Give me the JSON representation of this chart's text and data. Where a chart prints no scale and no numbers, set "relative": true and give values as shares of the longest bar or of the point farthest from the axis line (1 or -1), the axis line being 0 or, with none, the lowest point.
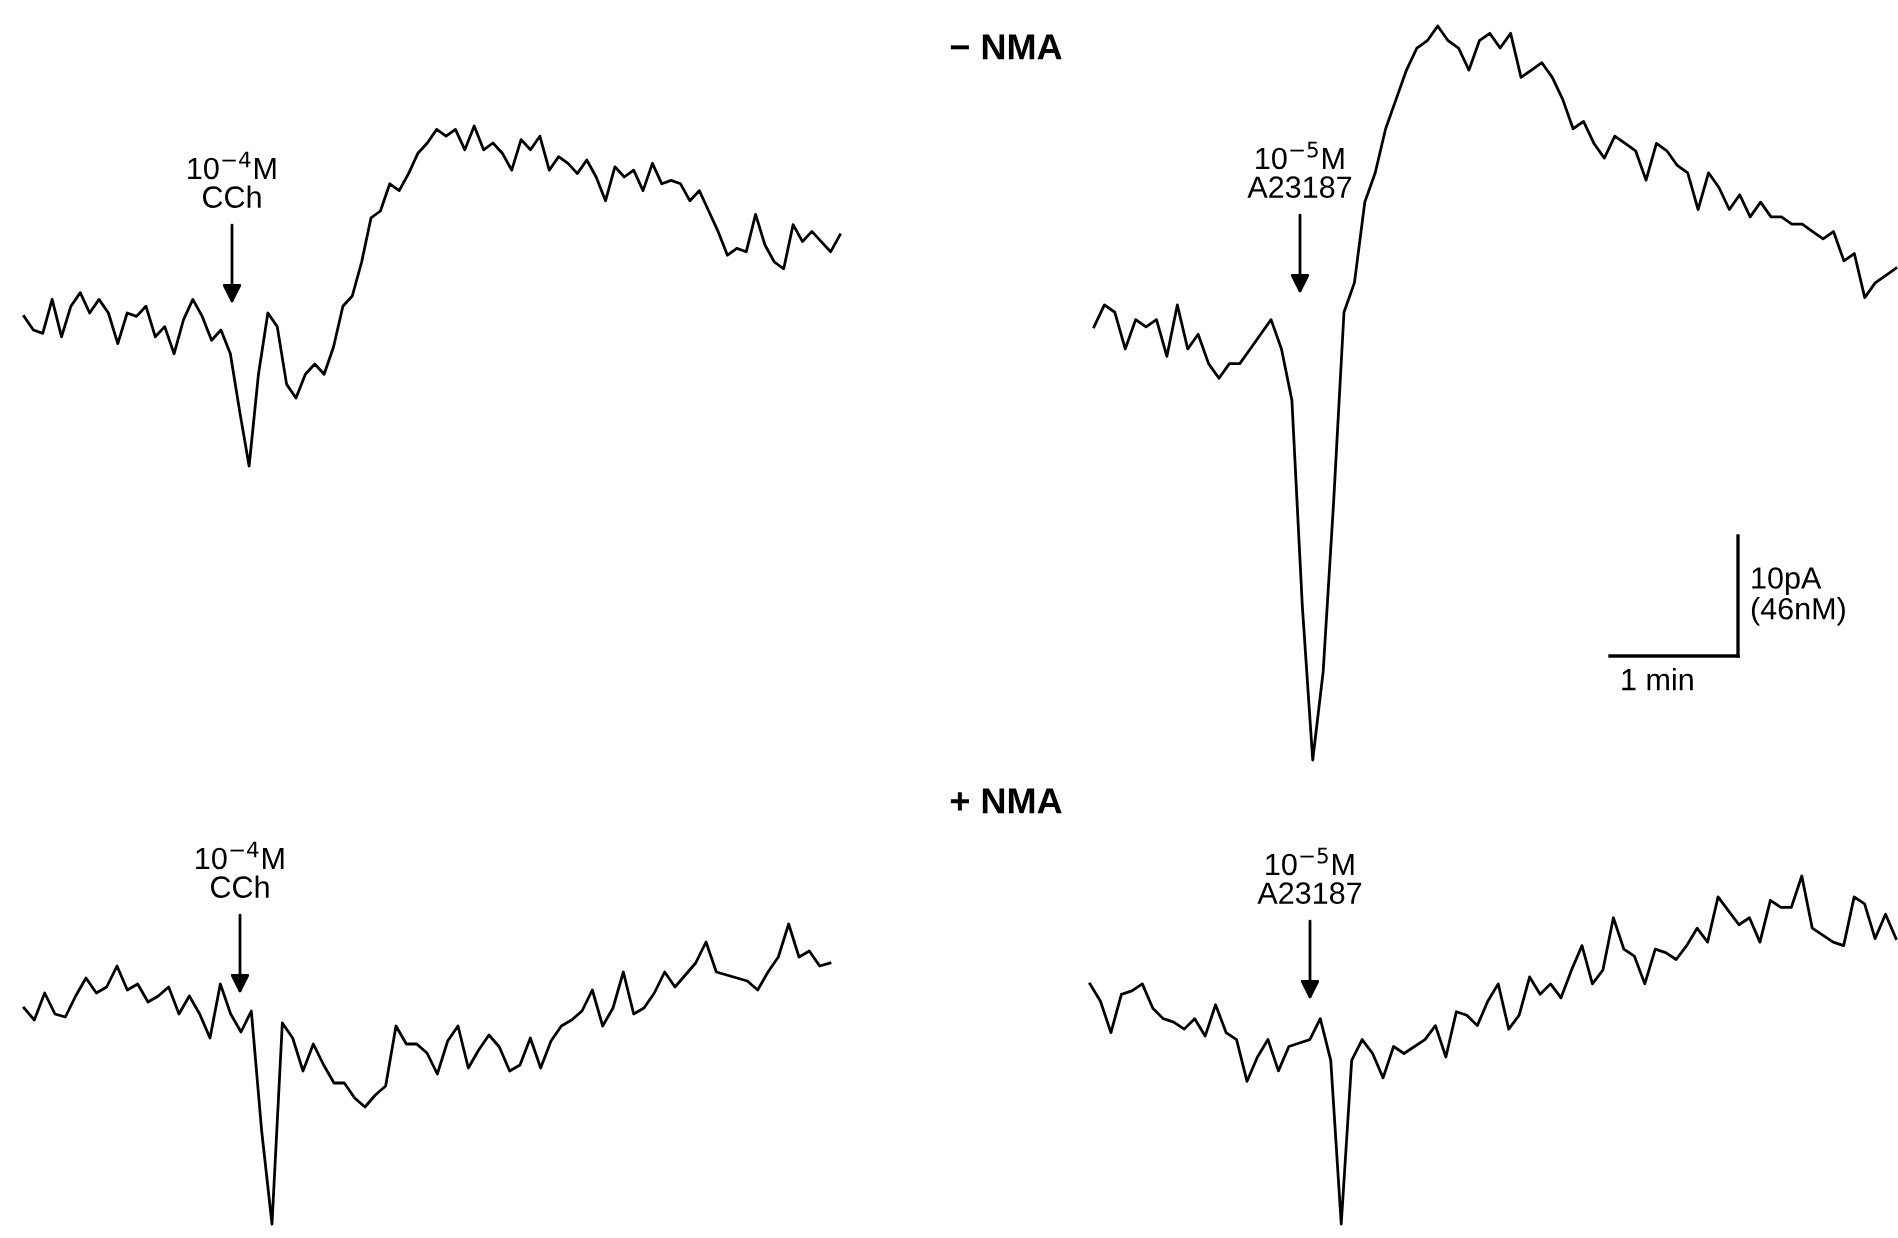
{
  "chart_data": [
    {
      "type": "line",
      "relative": true,
      "tick_labels": false,
      "categories": [
        null,
        null,
        null,
        null,
        null,
        null,
        null,
        null,
        null,
        null,
        null,
        null,
        null,
        null,
        null,
        null,
        null,
        null,
        null,
        null,
        null,
        null,
        null,
        null,
        null,
        null,
        null,
        null,
        null,
        null,
        null,
        null,
        null,
        null,
        null,
        null,
        null,
        null,
        null,
        null,
        null,
        null,
        null,
        null,
        null,
        null,
        null,
        null,
        null,
        null,
        null,
        null,
        null,
        null,
        null,
        null,
        null,
        null,
        null,
        null,
        null,
        null,
        null,
        null,
        null,
        null,
        null,
        null,
        null,
        null,
        null,
        null,
        null,
        null,
        null,
        null,
        null,
        null,
        null,
        null,
        null,
        null,
        null,
        null,
        null,
        null,
        null,
        null
      ],
      "series": [
        {
          "color": "#000000",
          "values": [
            0.44,
            0.4,
            0.39,
            0.49,
            0.38,
            0.47,
            0.51,
            0.45,
            0.49,
            0.45,
            0.36,
            0.45,
            0.44,
            0.47,
            0.38,
            0.41,
            0.33,
            0.43,
            0.49,
            0.44,
            0.37,
            0.4,
            0.33,
            0.16,
            0,
            0.27,
            0.45,
            0.41,
            0.24,
            0.2,
            0.27,
            0.3,
            0.27,
            0.35,
            0.47,
            0.5,
            0.6,
            0.73,
            0.75,
            0.83,
            0.81,
            0.86,
            0.92,
            0.95,
            0.99,
            0.97,
            0.99,
            0.93,
            1.0,
            0.93,
            0.95,
            0.92,
            0.87,
            0.96,
            0.93,
            0.97,
            0.87,
            0.91,
            0.89,
            0.86,
            0.9,
            0.85,
            0.78,
            0.88,
            0.85,
            0.87,
            0.81,
            0.89,
            0.83,
            0.84,
            0.83,
            0.78,
            0.81,
            0.75,
            0.69,
            0.62,
            0.64,
            0.63,
            0.74,
            0.65,
            0.6,
            0.58,
            0.71,
            0.66,
            0.69,
            0.66,
            0.63,
            0.68
          ]
        }
      ],
      "annotations": [
        "10$^{−4}$M\nCCh"
      ]
    },
    {
      "type": "line",
      "title": "− NMA",
      "relative": true,
      "tick_labels": false,
      "categories": [
        null,
        null,
        null,
        null,
        null,
        null,
        null,
        null,
        null,
        null,
        null,
        null,
        null,
        null,
        null,
        null,
        null,
        null,
        null,
        null,
        null,
        null,
        null,
        null,
        null,
        null,
        null,
        null,
        null,
        null,
        null,
        null,
        null,
        null,
        null,
        null,
        null,
        null,
        null,
        null,
        null,
        null,
        null,
        null,
        null,
        null,
        null,
        null,
        null,
        null,
        null,
        null,
        null,
        null,
        null,
        null,
        null,
        null,
        null,
        null,
        null,
        null,
        null,
        null,
        null,
        null,
        null,
        null,
        null,
        null,
        null,
        null,
        null,
        null,
        null,
        null,
        null,
        null
      ],
      "series": [
        {
          "color": "#000000",
          "values": [
            0.59,
            0.62,
            0.61,
            0.56,
            0.6,
            0.59,
            0.6,
            0.55,
            0.62,
            0.56,
            0.58,
            0.54,
            0.52,
            0.54,
            0.54,
            0.56,
            0.58,
            0.6,
            0.56,
            0.49,
            0.21,
            0,
            0.12,
            0.35,
            0.61,
            0.65,
            0.76,
            0.8,
            0.86,
            0.9,
            0.94,
            0.97,
            0.98,
            1.0,
            0.98,
            0.97,
            0.94,
            0.98,
            0.99,
            0.97,
            0.99,
            0.93,
            0.94,
            0.95,
            0.93,
            0.9,
            0.86,
            0.87,
            0.84,
            0.82,
            0.85,
            0.84,
            0.83,
            0.79,
            0.84,
            0.83,
            0.81,
            0.8,
            0.75,
            0.8,
            0.78,
            0.75,
            0.77,
            0.74,
            0.76,
            0.74,
            0.74,
            0.73,
            0.73,
            0.72,
            0.71,
            0.72,
            0.68,
            0.69,
            0.63,
            0.65,
            0.66,
            0.67
          ]
        }
      ],
      "annotations": [
        "10$^{−5}$M\nA23187",
        "10pA\n(46nM)",
        "1 min"
      ]
    },
    {
      "type": "line",
      "relative": true,
      "tick_labels": false,
      "categories": [
        null,
        null,
        null,
        null,
        null,
        null,
        null,
        null,
        null,
        null,
        null,
        null,
        null,
        null,
        null,
        null,
        null,
        null,
        null,
        null,
        null,
        null,
        null,
        null,
        null,
        null,
        null,
        null,
        null,
        null,
        null,
        null,
        null,
        null,
        null,
        null,
        null,
        null,
        null,
        null,
        null,
        null,
        null,
        null,
        null,
        null,
        null,
        null,
        null,
        null,
        null,
        null,
        null,
        null,
        null,
        null,
        null,
        null,
        null,
        null,
        null,
        null,
        null,
        null,
        null,
        null,
        null,
        null,
        null,
        null,
        null,
        null,
        null,
        null,
        null,
        null,
        null,
        null,
        null
      ],
      "series": [
        {
          "color": "#000000",
          "values": [
            0.72,
            0.68,
            0.77,
            0.7,
            0.69,
            0.76,
            0.82,
            0.77,
            0.79,
            0.86,
            0.78,
            0.8,
            0.74,
            0.76,
            0.79,
            0.7,
            0.76,
            0.7,
            0.62,
            0.8,
            0.7,
            0.64,
            0.71,
            0.31,
            0,
            0.67,
            0.62,
            0.51,
            0.6,
            0.53,
            0.47,
            0.47,
            0.42,
            0.39,
            0.43,
            0.46,
            0.66,
            0.6,
            0.6,
            0.57,
            0.5,
            0.61,
            0.66,
            0.52,
            0.58,
            0.63,
            0.59,
            0.51,
            0.53,
            0.62,
            0.52,
            0.61,
            0.66,
            0.68,
            0.71,
            0.78,
            0.66,
            0.72,
            0.84,
            0.7,
            0.72,
            0.77,
            0.84,
            0.79,
            0.83,
            0.87,
            0.94,
            0.84,
            0.83,
            0.82,
            0.81,
            0.78,
            0.84,
            0.89,
            1.0,
            0.89,
            0.91,
            0.86,
            0.87
          ]
        }
      ],
      "annotations": [
        "10$^{−4}$M\nCCh"
      ]
    },
    {
      "type": "line",
      "title": "+ NMA",
      "relative": true,
      "tick_labels": false,
      "categories": [
        null,
        null,
        null,
        null,
        null,
        null,
        null,
        null,
        null,
        null,
        null,
        null,
        null,
        null,
        null,
        null,
        null,
        null,
        null,
        null,
        null,
        null,
        null,
        null,
        null,
        null,
        null,
        null,
        null,
        null,
        null,
        null,
        null,
        null,
        null,
        null,
        null,
        null,
        null,
        null,
        null,
        null,
        null,
        null,
        null,
        null,
        null,
        null,
        null,
        null,
        null,
        null,
        null,
        null,
        null,
        null,
        null,
        null,
        null,
        null,
        null,
        null,
        null,
        null,
        null,
        null,
        null,
        null,
        null,
        null,
        null,
        null,
        null,
        null,
        null,
        null,
        null,
        null
      ],
      "series": [
        {
          "color": "#000000",
          "values": [
            0.69,
            0.64,
            0.55,
            0.66,
            0.67,
            0.69,
            0.62,
            0.59,
            0.58,
            0.56,
            0.59,
            0.54,
            0.63,
            0.55,
            0.53,
            0.41,
            0.48,
            0.53,
            0.44,
            0.51,
            0.52,
            0.53,
            0.59,
            0.47,
            0,
            0.47,
            0.53,
            0.49,
            0.42,
            0.51,
            0.49,
            0.51,
            0.53,
            0.57,
            0.48,
            0.61,
            0.6,
            0.57,
            0.64,
            0.69,
            0.56,
            0.6,
            0.71,
            0.66,
            0.69,
            0.65,
            0.73,
            0.8,
            0.69,
            0.73,
            0.88,
            0.79,
            0.77,
            0.69,
            0.79,
            0.78,
            0.76,
            0.8,
            0.85,
            0.81,
            0.94,
            0.9,
            0.86,
            0.88,
            0.81,
            0.93,
            0.91,
            0.91,
            1.0,
            0.85,
            0.83,
            0.81,
            0.8,
            0.94,
            0.92,
            0.82,
            0.89,
            0.82
          ]
        }
      ],
      "annotations": [
        "10$^{−5}$M\nA23187"
      ]
    }
  ]
}
